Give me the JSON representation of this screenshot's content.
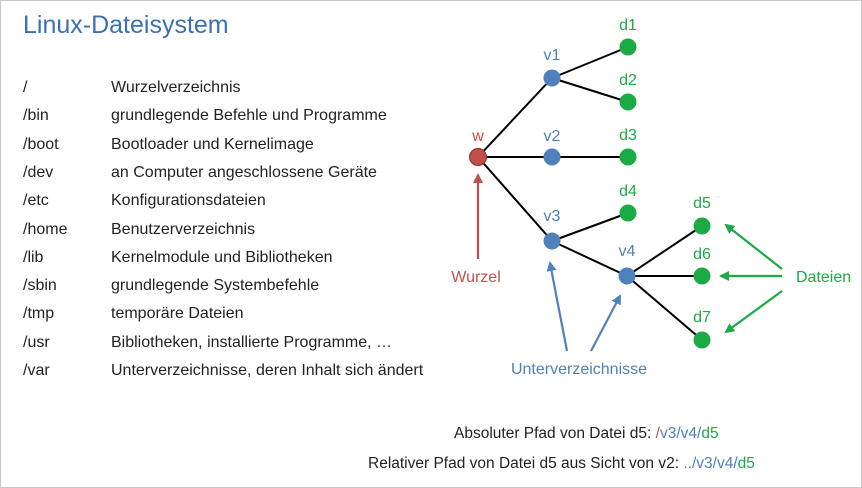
{
  "title": "Linux-Dateisystem",
  "directories": [
    {
      "path": "/",
      "desc": "Wurzelverzeichnis"
    },
    {
      "path": "/bin",
      "desc": "grundlegende Befehle und Programme"
    },
    {
      "path": "/boot",
      "desc": "Bootloader und Kernelimage"
    },
    {
      "path": "/dev",
      "desc": "an Computer angeschlossene Geräte"
    },
    {
      "path": "/etc",
      "desc": "Konfigurationsdateien"
    },
    {
      "path": "/home",
      "desc": "Benutzerverzeichnis"
    },
    {
      "path": "/lib",
      "desc": "Kernelmodule und Bibliotheken"
    },
    {
      "path": "/sbin",
      "desc": "grundlegende Systembefehle"
    },
    {
      "path": "/tmp",
      "desc": "temporäre Dateien"
    },
    {
      "path": "/usr",
      "desc": "Bibliotheken, installierte Programme, …"
    },
    {
      "path": "/var",
      "desc": "Unterverzeichnisse, deren Inhalt sich ändert"
    }
  ],
  "tree": {
    "nodes": [
      {
        "id": "w",
        "label": "w",
        "kind": "root"
      },
      {
        "id": "v1",
        "label": "v1",
        "kind": "dir"
      },
      {
        "id": "v2",
        "label": "v2",
        "kind": "dir"
      },
      {
        "id": "v3",
        "label": "v3",
        "kind": "dir"
      },
      {
        "id": "v4",
        "label": "v4",
        "kind": "dir"
      },
      {
        "id": "d1",
        "label": "d1",
        "kind": "file"
      },
      {
        "id": "d2",
        "label": "d2",
        "kind": "file"
      },
      {
        "id": "d3",
        "label": "d3",
        "kind": "file"
      },
      {
        "id": "d4",
        "label": "d4",
        "kind": "file"
      },
      {
        "id": "d5",
        "label": "d5",
        "kind": "file"
      },
      {
        "id": "d6",
        "label": "d6",
        "kind": "file"
      },
      {
        "id": "d7",
        "label": "d7",
        "kind": "file"
      }
    ],
    "edges": [
      [
        "w",
        "v1"
      ],
      [
        "w",
        "v2"
      ],
      [
        "w",
        "v3"
      ],
      [
        "v1",
        "d1"
      ],
      [
        "v1",
        "d2"
      ],
      [
        "v2",
        "d3"
      ],
      [
        "v3",
        "d4"
      ],
      [
        "v3",
        "v4"
      ],
      [
        "v4",
        "d5"
      ],
      [
        "v4",
        "d6"
      ],
      [
        "v4",
        "d7"
      ]
    ]
  },
  "annotations": {
    "root": "Wurzel",
    "dirs": "Unterverzeichnisse",
    "files": "Dateien"
  },
  "colors": {
    "root": "#c0504d",
    "dir": "#4f81bd",
    "file": "#1aab44",
    "title": "#3d6fb5"
  },
  "footer": {
    "absolute_label": "Absoluter Pfad von Datei d5:",
    "absolute_path": [
      "/",
      "v3",
      "/",
      "v4",
      "/",
      "d5"
    ],
    "relative_label": "Relativer Pfad von Datei d5 aus Sicht von v2:",
    "relative_path": [
      "../",
      "v3",
      "/",
      "v4",
      "/",
      "d5"
    ]
  }
}
